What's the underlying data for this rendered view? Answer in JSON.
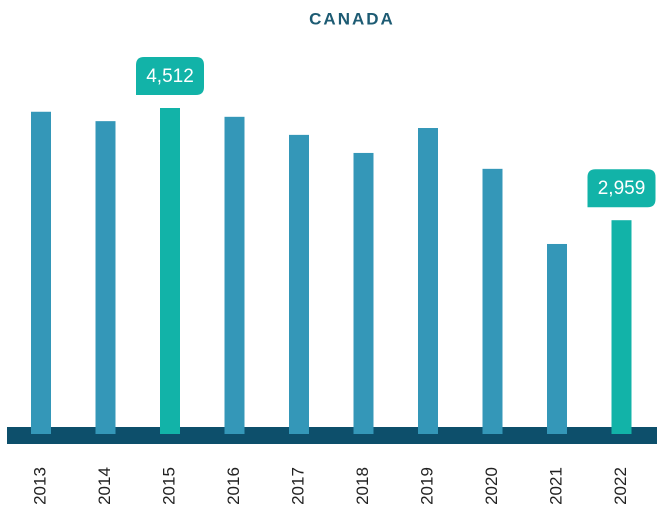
{
  "chart_data": {
    "type": "bar",
    "title": "CANADA",
    "categories": [
      "2013",
      "2014",
      "2015",
      "2016",
      "2017",
      "2018",
      "2019",
      "2020",
      "2021",
      "2022"
    ],
    "values": [
      4460,
      4330,
      4512,
      4390,
      4140,
      3890,
      4235,
      3670,
      2630,
      2959
    ],
    "value_labels": [
      null,
      null,
      "4,512",
      null,
      null,
      null,
      null,
      null,
      null,
      "2,959"
    ],
    "colors": [
      "#3497b8",
      "#3497b8",
      "#12b3a8",
      "#3497b8",
      "#3497b8",
      "#3497b8",
      "#3497b8",
      "#3497b8",
      "#3497b8",
      "#12b3a8"
    ]
  }
}
